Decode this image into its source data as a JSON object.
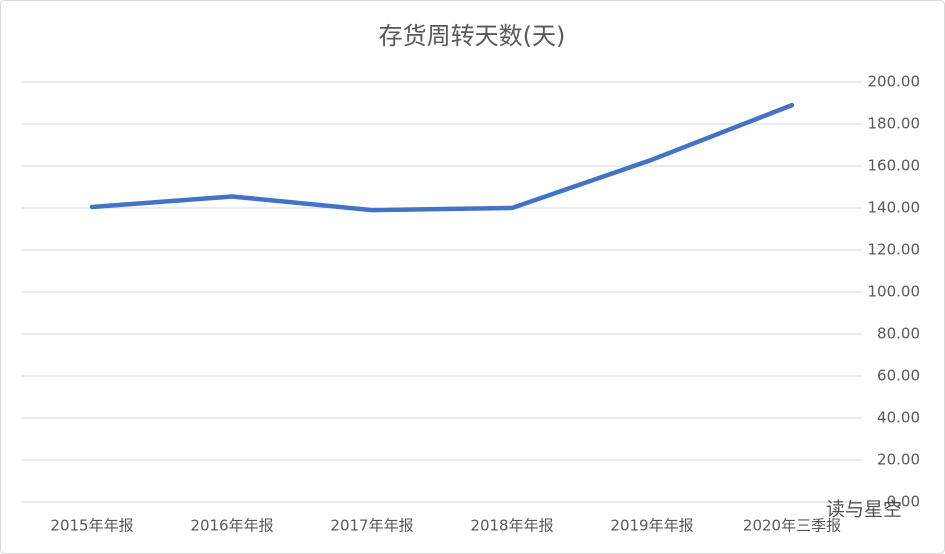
{
  "chart_data": {
    "type": "line",
    "title": "存货周转天数(天)",
    "categories": [
      "2015年年报",
      "2016年年报",
      "2017年年报",
      "2018年年报",
      "2019年年报",
      "2020年三季报"
    ],
    "series": [
      {
        "name": "存货周转天数",
        "color": "#4472c4",
        "values": [
          140.5,
          145.5,
          139,
          140,
          163,
          189
        ]
      }
    ],
    "ylim": [
      0,
      200
    ],
    "yticks": [
      {
        "value": 0,
        "label": "0.00"
      },
      {
        "value": 20,
        "label": "20.00"
      },
      {
        "value": 40,
        "label": "40.00"
      },
      {
        "value": 60,
        "label": "60.00"
      },
      {
        "value": 80,
        "label": "80.00"
      },
      {
        "value": 100,
        "label": "100.00"
      },
      {
        "value": 120,
        "label": "120.00"
      },
      {
        "value": 140,
        "label": "140.00"
      },
      {
        "value": 160,
        "label": "160.00"
      },
      {
        "value": 180,
        "label": "180.00"
      },
      {
        "value": 200,
        "label": "200.00"
      }
    ],
    "grid": true,
    "watermark": "读与星空"
  }
}
